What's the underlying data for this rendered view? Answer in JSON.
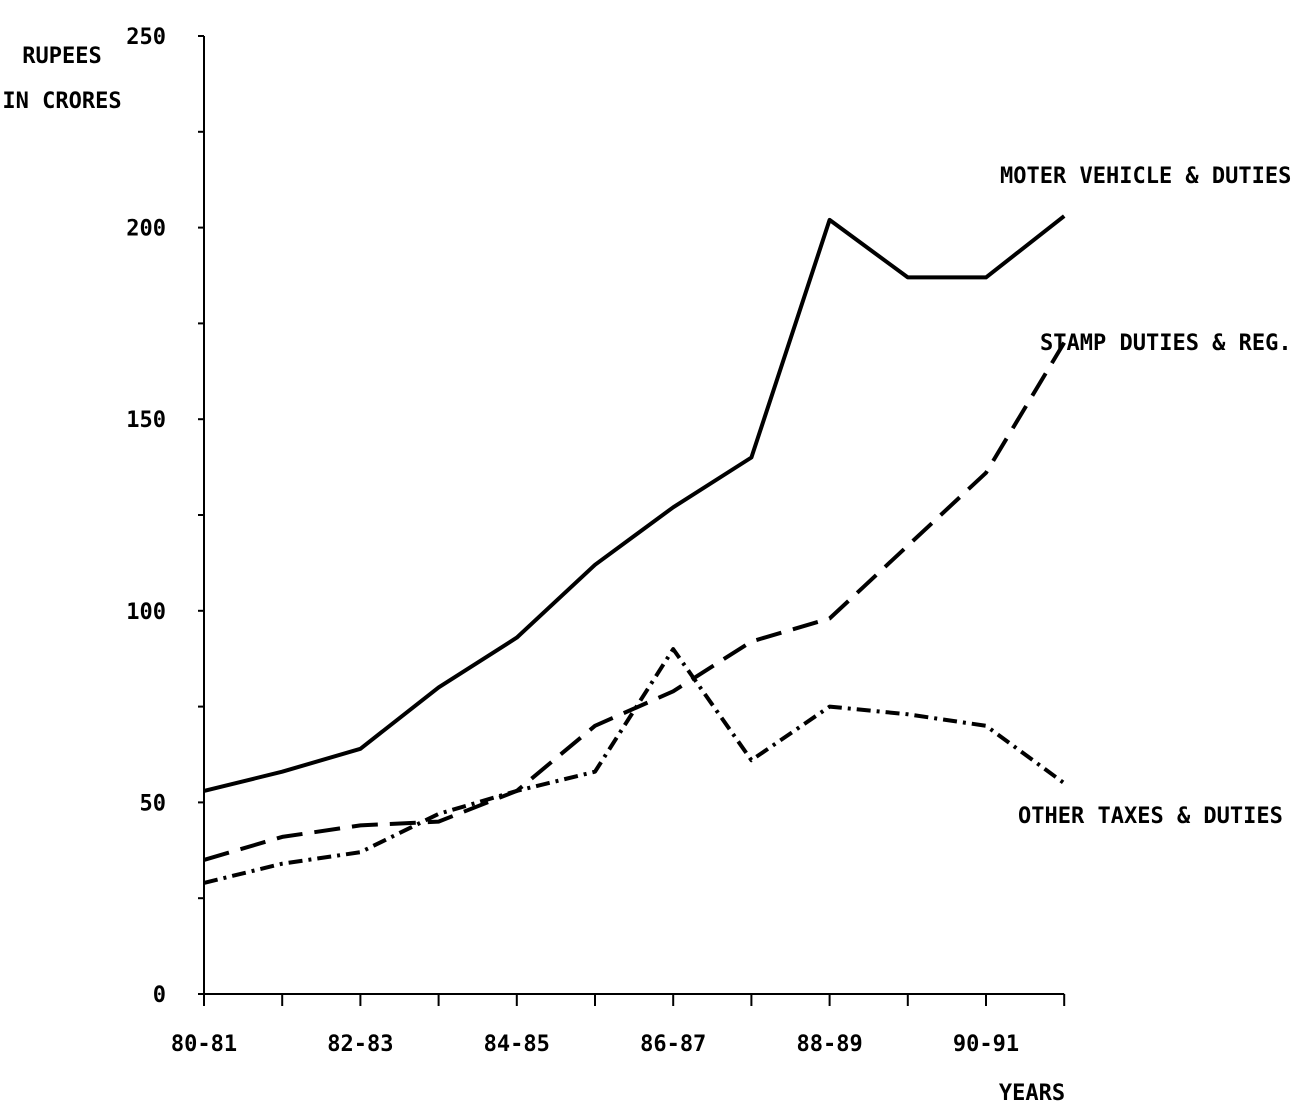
{
  "chart_data": {
    "type": "line",
    "title": "",
    "ylabel": [
      "RUPEES",
      "IN CRORES"
    ],
    "xlabel": "YEARS",
    "ylim": [
      0,
      250
    ],
    "yticks": [
      0,
      50,
      100,
      150,
      200,
      250
    ],
    "ytick_labels": [
      "0",
      "50",
      "100",
      "150",
      "200",
      "250"
    ],
    "x": [
      0,
      1,
      2,
      3,
      4,
      5,
      6,
      7,
      8,
      9,
      10,
      11
    ],
    "xtick_labels": [
      {
        "index": 0,
        "text": "80-81"
      },
      {
        "index": 2,
        "text": "82-83"
      },
      {
        "index": 4,
        "text": "84-85"
      },
      {
        "index": 6,
        "text": "86-87"
      },
      {
        "index": 8,
        "text": "88-89"
      },
      {
        "index": 10,
        "text": "90-91"
      }
    ],
    "grid": false,
    "series": [
      {
        "name": "MOTER VEHICLE & DUTIES",
        "style": "solid",
        "values": [
          53,
          58,
          64,
          80,
          93,
          112,
          127,
          140,
          202,
          187,
          187,
          203
        ]
      },
      {
        "name": "STAMP DUTIES & REG.",
        "style": "dashed",
        "values": [
          35,
          41,
          44,
          45,
          53,
          70,
          79,
          92,
          98,
          117,
          136,
          170
        ]
      },
      {
        "name": "OTHER TAXES & DUTIES",
        "style": "dashdot",
        "values": [
          29,
          34,
          37,
          47,
          53,
          58,
          90,
          61,
          75,
          73,
          70,
          55
        ]
      }
    ]
  }
}
